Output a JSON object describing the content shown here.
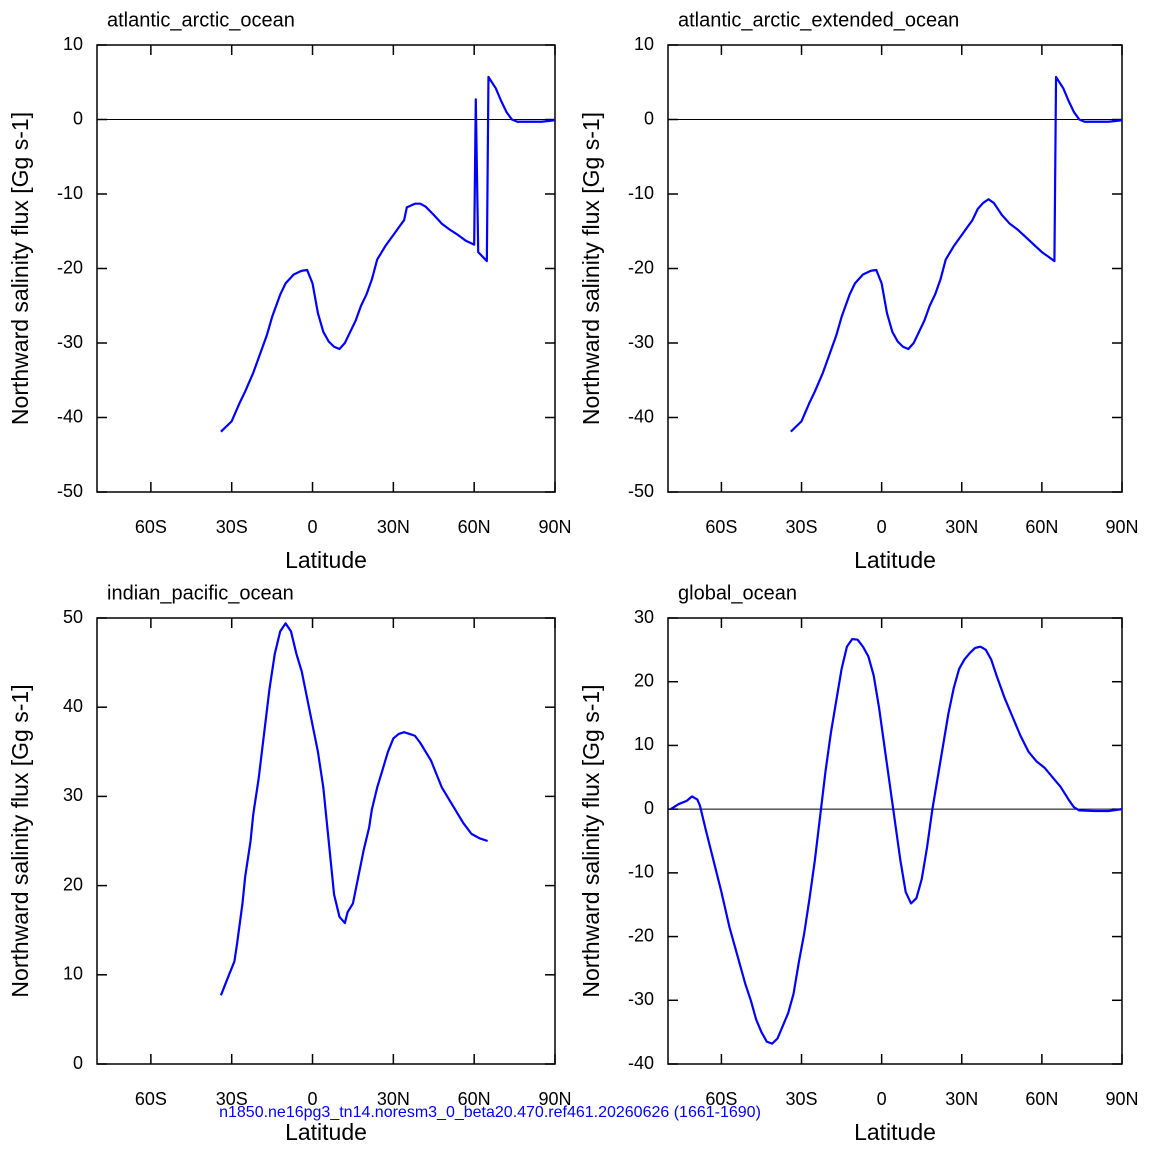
{
  "chart_data": [
    {
      "type": "line",
      "title": "atlantic_arctic_ocean",
      "xlabel": "Latitude",
      "ylabel": "Northward salinity flux [Gg s-1]",
      "color": "#0000ff",
      "xlim": [
        -80,
        90
      ],
      "xticks": [
        {
          "value": -60,
          "label": "60S"
        },
        {
          "value": -30,
          "label": "30S"
        },
        0,
        {
          "value": 30,
          "label": "30N"
        },
        {
          "value": 60,
          "label": "60N"
        },
        {
          "value": 90,
          "label": "90N"
        }
      ],
      "ylim": [
        -50,
        10
      ],
      "yticks": [
        -50,
        -40,
        -30,
        -20,
        -10,
        0,
        10
      ],
      "hline": 0,
      "x": [
        -34,
        -30,
        -27,
        -25,
        -22,
        -20,
        -17,
        -15,
        -12,
        -10,
        -7,
        -4,
        -2,
        0,
        2,
        4,
        6,
        8,
        10,
        12,
        14,
        16,
        18,
        20,
        22,
        24,
        27,
        30,
        32,
        34,
        35,
        38,
        40,
        42,
        45,
        48,
        51,
        54,
        57,
        60,
        60.6,
        61.5,
        64.7,
        65.3,
        68,
        70,
        72,
        74,
        76,
        80,
        85,
        90
      ],
      "values": [
        -41.9,
        -40.5,
        -38,
        -36.5,
        -34,
        -32,
        -29,
        -26.5,
        -23.5,
        -22,
        -20.8,
        -20.3,
        -20.2,
        -22,
        -26,
        -28.5,
        -29.8,
        -30.5,
        -30.8,
        -30,
        -28.5,
        -27,
        -25,
        -23.5,
        -21.5,
        -18.8,
        -17,
        -15.5,
        -14.5,
        -13.5,
        -11.8,
        -11.3,
        -11.3,
        -11.7,
        -12.8,
        -14,
        -14.8,
        -15.5,
        -16.3,
        -16.8,
        2.7,
        -17.8,
        -19,
        5.7,
        4.2,
        2.5,
        1,
        0,
        -0.3,
        -0.3,
        -0.3,
        -0.1
      ]
    },
    {
      "type": "line",
      "title": "atlantic_arctic_extended_ocean",
      "xlabel": "Latitude",
      "ylabel": "Northward salinity flux [Gg s-1]",
      "color": "#0000ff",
      "xlim": [
        -80,
        90
      ],
      "xticks": [
        {
          "value": -60,
          "label": "60S"
        },
        {
          "value": -30,
          "label": "30S"
        },
        0,
        {
          "value": 30,
          "label": "30N"
        },
        {
          "value": 60,
          "label": "60N"
        },
        {
          "value": 90,
          "label": "90N"
        }
      ],
      "ylim": [
        -50,
        10
      ],
      "yticks": [
        -50,
        -40,
        -30,
        -20,
        -10,
        0,
        10
      ],
      "hline": 0,
      "x": [
        -34,
        -30,
        -27,
        -25,
        -22,
        -20,
        -17,
        -15,
        -12,
        -10,
        -7,
        -4,
        -2,
        0,
        2,
        4,
        6,
        8,
        10,
        12,
        14,
        16,
        18,
        20,
        22,
        24,
        27,
        30,
        32,
        34,
        36,
        38,
        40,
        42,
        45,
        48,
        51,
        54,
        57,
        60,
        62,
        64.7,
        65.3,
        68,
        70,
        72,
        74,
        76,
        80,
        85,
        90
      ],
      "values": [
        -41.9,
        -40.5,
        -38,
        -36.5,
        -34,
        -32,
        -29,
        -26.5,
        -23.5,
        -22,
        -20.8,
        -20.3,
        -20.2,
        -22,
        -26,
        -28.5,
        -29.8,
        -30.5,
        -30.8,
        -30,
        -28.5,
        -27,
        -25,
        -23.5,
        -21.5,
        -18.8,
        -17,
        -15.5,
        -14.5,
        -13.5,
        -12,
        -11.2,
        -10.7,
        -11.2,
        -12.8,
        -14,
        -14.8,
        -15.8,
        -16.8,
        -17.8,
        -18.3,
        -19,
        5.7,
        4.2,
        2.5,
        1,
        0,
        -0.3,
        -0.3,
        -0.3,
        -0.1
      ]
    },
    {
      "type": "line",
      "title": "indian_pacific_ocean",
      "xlabel": "Latitude",
      "ylabel": "Northward salinity flux [Gg s-1]",
      "color": "#0000ff",
      "xlim": [
        -80,
        90
      ],
      "xticks": [
        {
          "value": -60,
          "label": "60S"
        },
        {
          "value": -30,
          "label": "30S"
        },
        0,
        {
          "value": 30,
          "label": "30N"
        },
        {
          "value": 60,
          "label": "60N"
        },
        {
          "value": 90,
          "label": "90N"
        }
      ],
      "ylim": [
        0,
        50
      ],
      "yticks": [
        0,
        10,
        20,
        30,
        40,
        50
      ],
      "x": [
        -34,
        -31,
        -29,
        -28,
        -26,
        -25,
        -23,
        -22,
        -20,
        -18,
        -16,
        -14,
        -12,
        -10,
        -8,
        -6,
        -4,
        -2,
        0,
        2,
        4,
        6,
        8,
        10,
        12,
        13,
        15,
        17,
        19,
        21,
        22,
        24,
        26,
        28,
        30,
        32,
        34,
        36,
        38,
        40,
        42,
        44,
        46,
        48,
        50,
        53,
        56,
        59,
        62,
        65
      ],
      "values": [
        7.7,
        10,
        11.5,
        13.5,
        18,
        21,
        25,
        28,
        32,
        37,
        42,
        46,
        48.5,
        49.4,
        48.5,
        46,
        44,
        41,
        38,
        35,
        31,
        25,
        19,
        16.5,
        15.8,
        17,
        18,
        21,
        24,
        26.5,
        28.5,
        31,
        33,
        35,
        36.5,
        37,
        37.2,
        37,
        36.8,
        36,
        35,
        34,
        32.5,
        31,
        30,
        28.5,
        27,
        25.8,
        25.3,
        25
      ]
    },
    {
      "type": "line",
      "title": "global_ocean",
      "xlabel": "Latitude",
      "ylabel": "Northward salinity flux [Gg s-1]",
      "color": "#0000ff",
      "xlim": [
        -80,
        90
      ],
      "xticks": [
        {
          "value": -60,
          "label": "60S"
        },
        {
          "value": -30,
          "label": "30S"
        },
        0,
        {
          "value": 30,
          "label": "30N"
        },
        {
          "value": 60,
          "label": "60N"
        },
        {
          "value": 90,
          "label": "90N"
        }
      ],
      "ylim": [
        -40,
        30
      ],
      "yticks": [
        -40,
        -30,
        -20,
        -10,
        0,
        10,
        20,
        30
      ],
      "hline": 0,
      "x": [
        -79,
        -76,
        -73,
        -71,
        -69,
        -68,
        -66,
        -63,
        -60,
        -57,
        -54,
        -51,
        -49,
        -47,
        -45,
        -43,
        -41,
        -39,
        -37,
        -35,
        -33,
        -31,
        -29,
        -27,
        -25,
        -23,
        -21,
        -19,
        -17,
        -15,
        -13,
        -11,
        -9,
        -7,
        -5,
        -3,
        -1,
        1,
        3,
        5,
        7,
        9,
        11,
        13,
        15,
        17,
        19,
        21,
        23,
        25,
        27,
        29,
        31,
        33,
        35,
        37,
        39,
        41,
        43,
        46,
        49,
        52,
        55,
        58,
        61,
        64,
        67,
        70,
        72,
        74,
        80,
        85,
        90
      ],
      "values": [
        0,
        0.8,
        1.3,
        2,
        1.5,
        0.5,
        -3,
        -8,
        -13,
        -18.5,
        -23,
        -27.5,
        -30,
        -33,
        -35,
        -36.5,
        -36.8,
        -36,
        -34,
        -32,
        -29,
        -24,
        -19.5,
        -14,
        -8,
        -1,
        6,
        12,
        17,
        22,
        25.5,
        26.7,
        26.6,
        25.5,
        24,
        21,
        16,
        10,
        4,
        -2,
        -8,
        -13,
        -14.8,
        -14,
        -11,
        -6,
        0,
        5,
        10,
        15,
        19,
        22,
        23.5,
        24.5,
        25.3,
        25.5,
        25,
        23.5,
        21,
        17.5,
        14.5,
        11.5,
        9,
        7.5,
        6.5,
        5,
        3.5,
        1.5,
        0.3,
        -0.2,
        -0.3,
        -0.3,
        0
      ]
    }
  ],
  "footer": "n1850.ne16pg3_tn14.noresm3_0_beta20.470.ref461.20260626 (1661-1690)"
}
